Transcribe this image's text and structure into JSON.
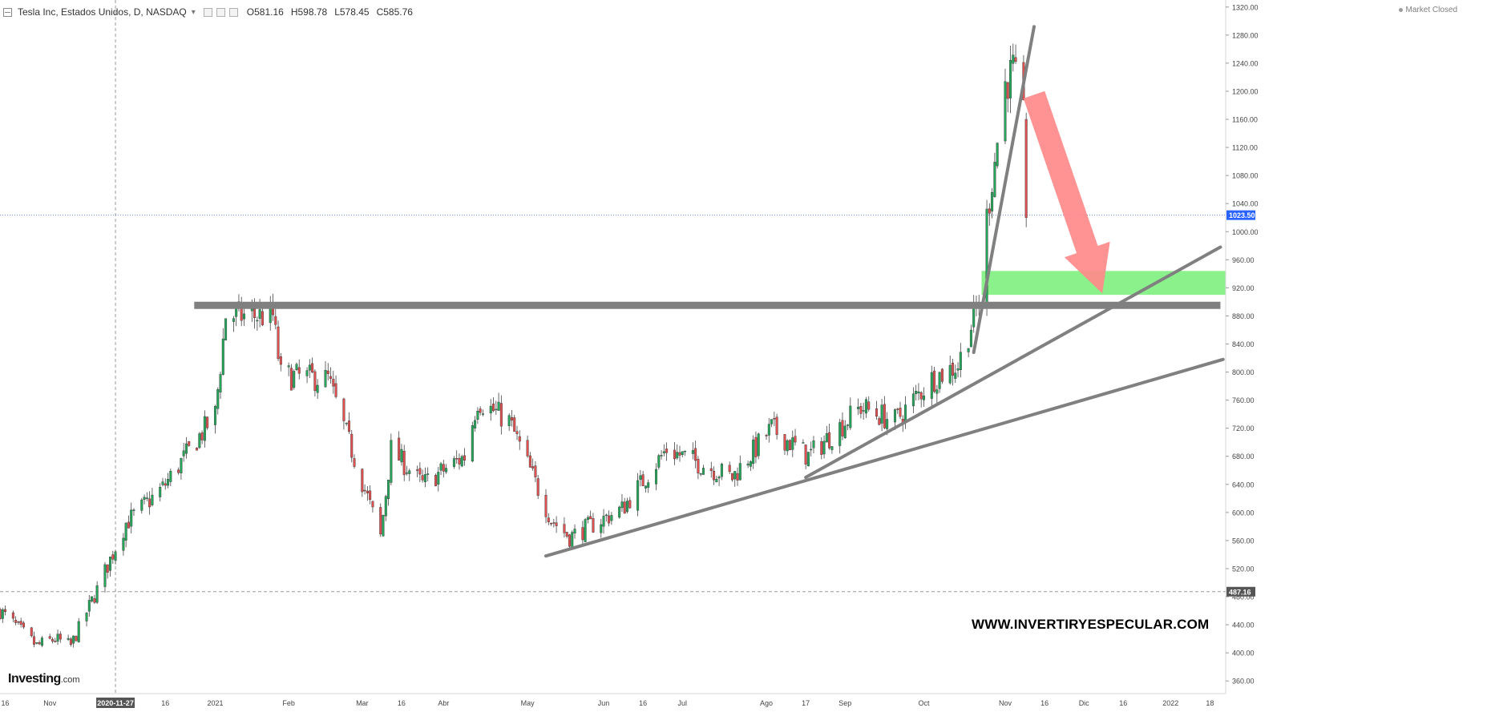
{
  "header": {
    "symbol_title": "Tesla Inc, Estados Unidos, D, NASDAQ",
    "open_label": "O581.16",
    "high_label": "H598.78",
    "low_label": "L578.45",
    "close_label": "C585.76",
    "market_status": "Market Closed"
  },
  "watermark": "WWW.INVERTIRYESPECULAR.COM",
  "logo": {
    "name": "Investing",
    "suffix": ".com"
  },
  "colors": {
    "up": "#26a65b",
    "down": "#e05050",
    "trendline": "#808080",
    "zone": "#7ef07e",
    "arrow": "#ff8a8a",
    "current_price_tag": "#2962ff",
    "crosshair_tag": "#555555"
  },
  "chart_data": {
    "type": "candlestick",
    "symbol": "TSLA",
    "timeframe": "D",
    "yaxis": {
      "min": 342,
      "max": 1330,
      "ticks": [
        360,
        400,
        440,
        480,
        520,
        560,
        600,
        640,
        680,
        720,
        760,
        800,
        840,
        880,
        920,
        960,
        1000,
        1040,
        1080,
        1120,
        1160,
        1200,
        1240,
        1280,
        1320
      ]
    },
    "current_price": 1023.5,
    "current_price_label": "1023.50",
    "crosshair_price": 487.16,
    "crosshair_price_label": "487.16",
    "crosshair_date": "2020-11-27",
    "xaxis": {
      "start": "2020-10-14",
      "end": "2022-01-24",
      "tick_labels": [
        {
          "date": "2020-10-16",
          "label": "16"
        },
        {
          "date": "2020-11-02",
          "label": "Nov"
        },
        {
          "date": "2020-12-16",
          "label": "16"
        },
        {
          "date": "2021-01-04",
          "label": "2021"
        },
        {
          "date": "2021-02-01",
          "label": "Feb"
        },
        {
          "date": "2021-03-01",
          "label": "Mar"
        },
        {
          "date": "2021-03-16",
          "label": "16"
        },
        {
          "date": "2021-04-01",
          "label": "Abr"
        },
        {
          "date": "2021-05-03",
          "label": "May"
        },
        {
          "date": "2021-06-01",
          "label": "Jun"
        },
        {
          "date": "2021-06-16",
          "label": "16"
        },
        {
          "date": "2021-07-01",
          "label": "Jul"
        },
        {
          "date": "2021-08-02",
          "label": "Ago"
        },
        {
          "date": "2021-08-17",
          "label": "17"
        },
        {
          "date": "2021-09-01",
          "label": "Sep"
        },
        {
          "date": "2021-10-01",
          "label": "Oct"
        },
        {
          "date": "2021-11-01",
          "label": "Nov"
        },
        {
          "date": "2021-11-16",
          "label": "16"
        },
        {
          "date": "2021-12-01",
          "label": "Dic"
        },
        {
          "date": "2021-12-16",
          "label": "16"
        },
        {
          "date": "2022-01-03",
          "label": "2022"
        },
        {
          "date": "2022-01-18",
          "label": "18"
        }
      ]
    },
    "price_path": [
      {
        "date": "2020-10-14",
        "close": 460
      },
      {
        "date": "2020-10-28",
        "close": 410
      },
      {
        "date": "2020-11-04",
        "close": 420
      },
      {
        "date": "2020-11-10",
        "close": 410
      },
      {
        "date": "2020-11-20",
        "close": 490
      },
      {
        "date": "2020-12-01",
        "close": 585
      },
      {
        "date": "2020-12-15",
        "close": 635
      },
      {
        "date": "2021-01-04",
        "close": 740
      },
      {
        "date": "2021-01-08",
        "close": 880
      },
      {
        "date": "2021-01-26",
        "close": 880
      },
      {
        "date": "2021-01-29",
        "close": 795
      },
      {
        "date": "2021-02-16",
        "close": 790
      },
      {
        "date": "2021-02-24",
        "close": 700
      },
      {
        "date": "2021-03-08",
        "close": 565
      },
      {
        "date": "2021-03-12",
        "close": 690
      },
      {
        "date": "2021-03-24",
        "close": 640
      },
      {
        "date": "2021-04-09",
        "close": 680
      },
      {
        "date": "2021-04-14",
        "close": 760
      },
      {
        "date": "2021-04-26",
        "close": 730
      },
      {
        "date": "2021-05-12",
        "close": 590
      },
      {
        "date": "2021-05-19",
        "close": 565
      },
      {
        "date": "2021-06-08",
        "close": 605
      },
      {
        "date": "2021-06-25",
        "close": 690
      },
      {
        "date": "2021-07-20",
        "close": 650
      },
      {
        "date": "2021-08-04",
        "close": 720
      },
      {
        "date": "2021-08-18",
        "close": 680
      },
      {
        "date": "2021-09-07",
        "close": 750
      },
      {
        "date": "2021-09-20",
        "close": 730
      },
      {
        "date": "2021-10-04",
        "close": 790
      },
      {
        "date": "2021-10-14",
        "close": 810
      },
      {
        "date": "2021-10-22",
        "close": 900
      },
      {
        "date": "2021-10-25",
        "close": 1020
      },
      {
        "date": "2021-11-01",
        "close": 1210
      },
      {
        "date": "2021-11-04",
        "close": 1230
      },
      {
        "date": "2021-11-08",
        "close": 1160
      },
      {
        "date": "2021-11-09",
        "close": 1020
      }
    ],
    "annotations": {
      "resistance": {
        "price": 895,
        "from": "2020-12-27",
        "to": "2022-01-22"
      },
      "support_zone": {
        "low": 910,
        "high": 944,
        "from": "2021-10-23",
        "to": "2022-01-24"
      },
      "trendlines": [
        {
          "from": {
            "date": "2021-05-10",
            "price": 538
          },
          "to": {
            "date": "2022-01-23",
            "price": 818
          }
        },
        {
          "from": {
            "date": "2021-08-17",
            "price": 650
          },
          "to": {
            "date": "2022-01-22",
            "price": 978
          }
        },
        {
          "from": {
            "date": "2021-10-20",
            "price": 828
          },
          "to": {
            "date": "2021-11-12",
            "price": 1292
          }
        }
      ],
      "arrow": {
        "from": {
          "date": "2021-11-12",
          "price": 1195
        },
        "to": {
          "date": "2021-12-08",
          "price": 912
        }
      }
    }
  }
}
